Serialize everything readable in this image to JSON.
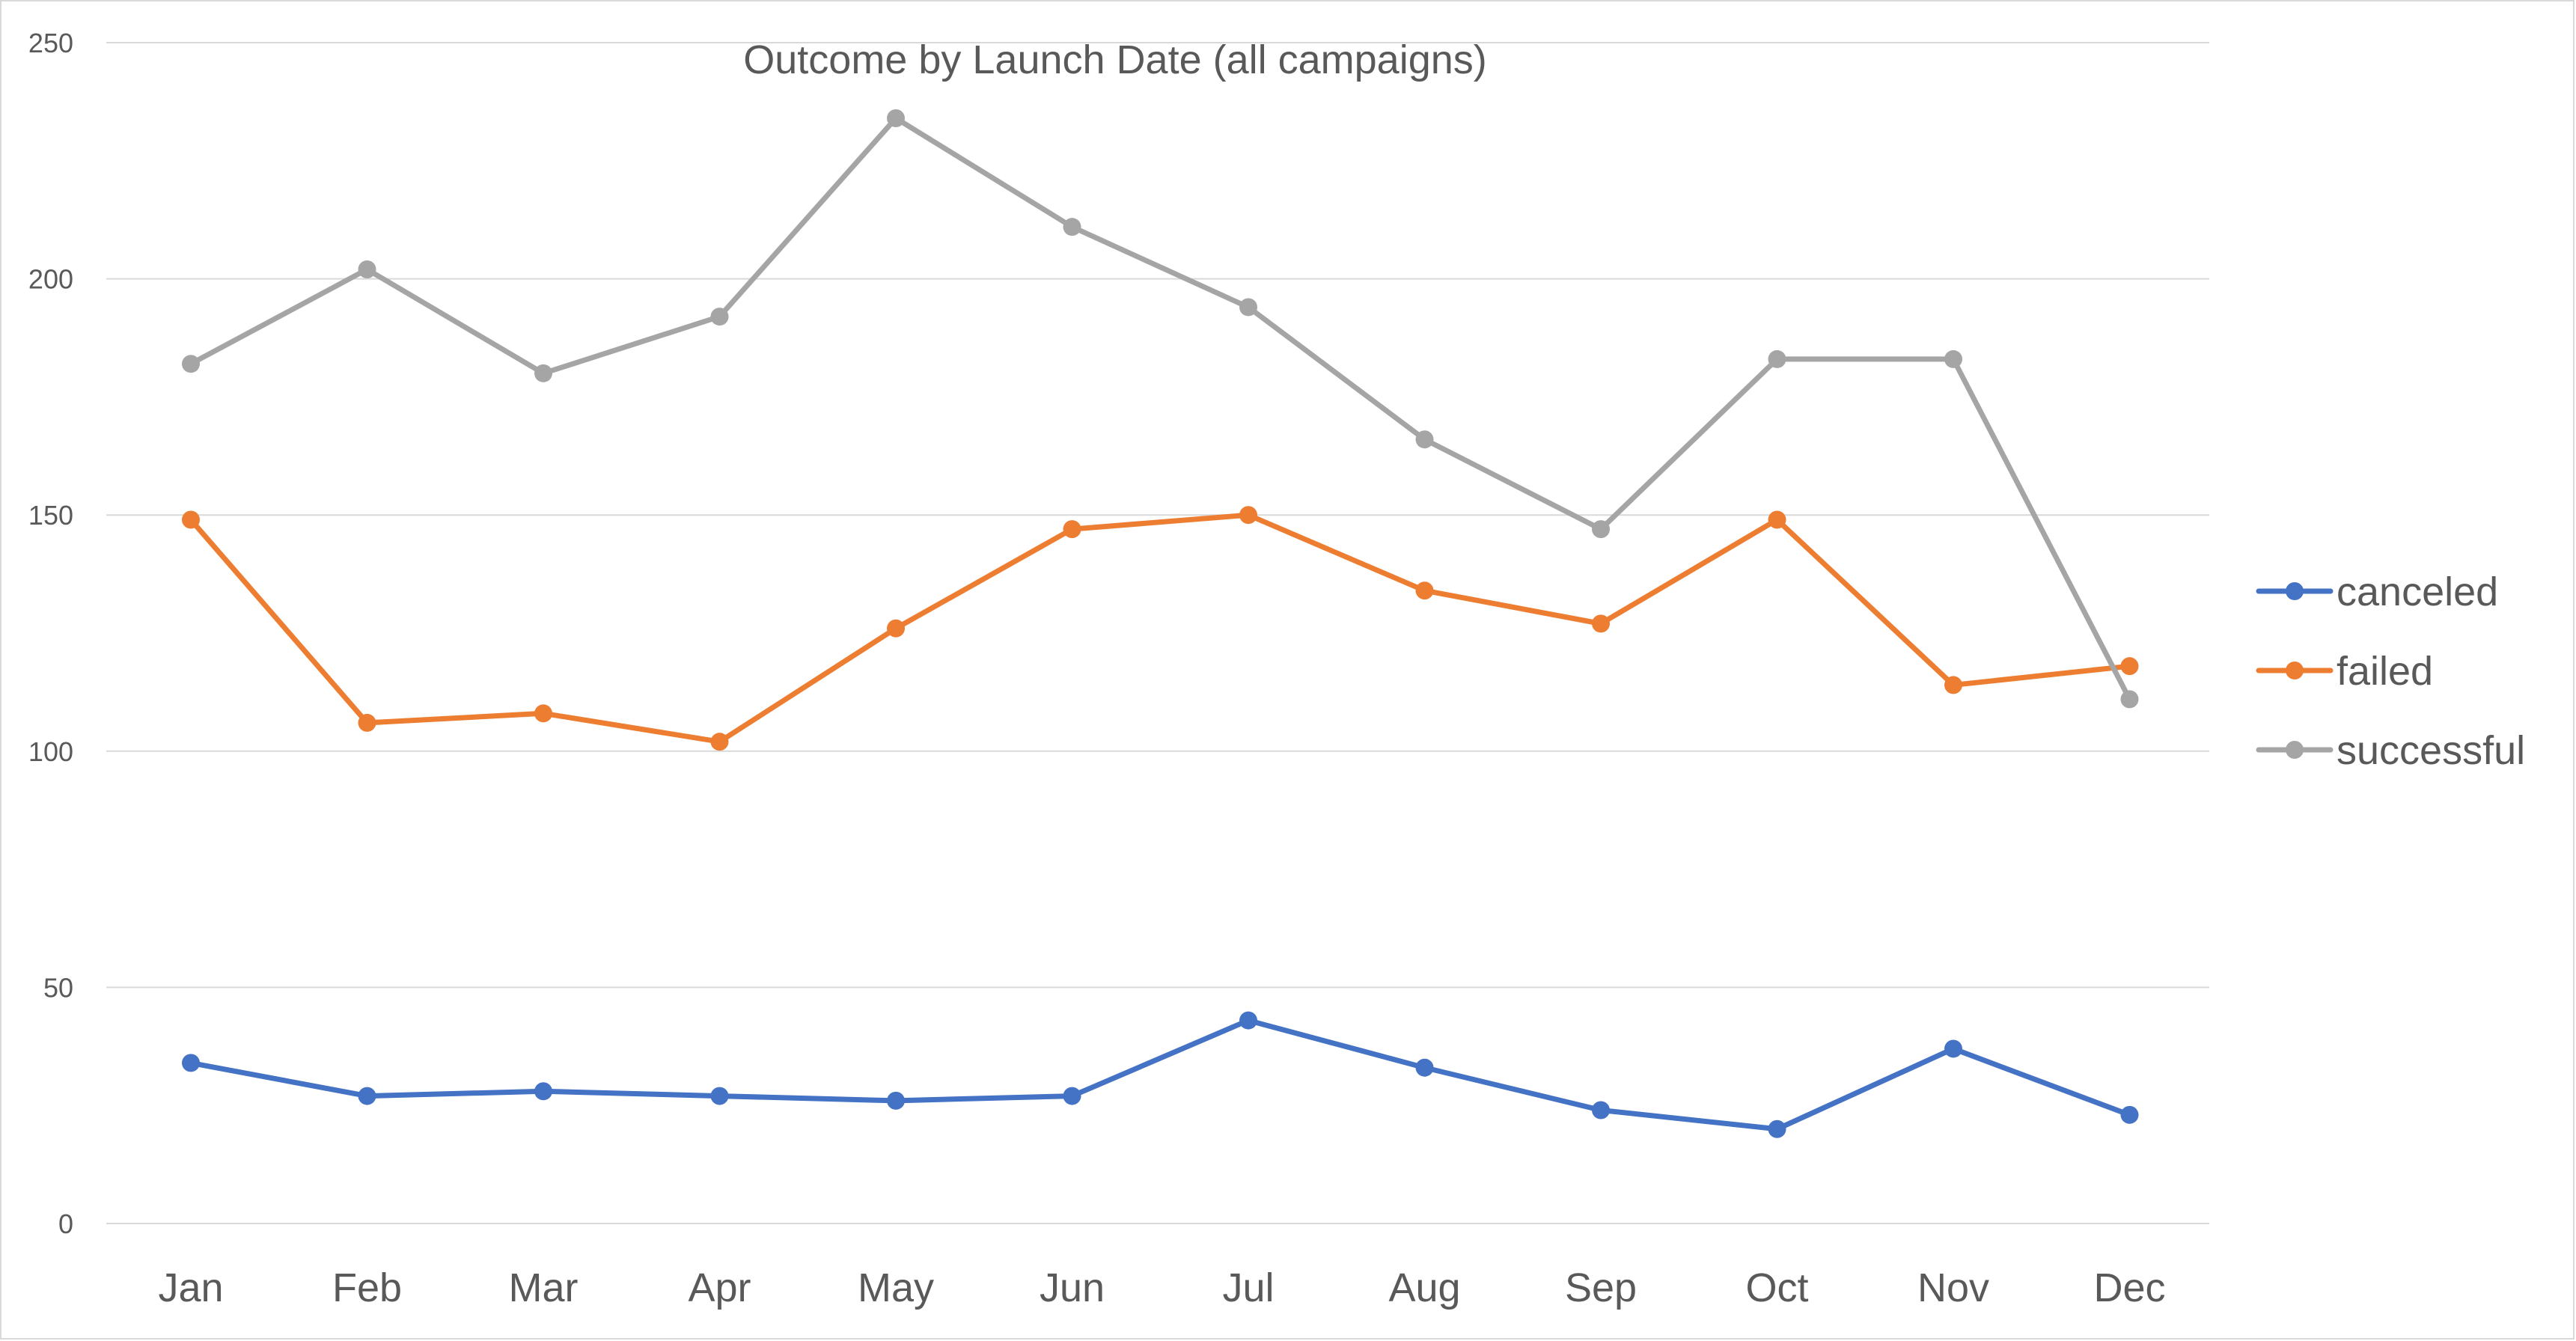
{
  "chart_data": {
    "type": "line",
    "title": "Outcome by Launch Date (all campaigns)",
    "xlabel": "",
    "ylabel": "",
    "categories": [
      "Jan",
      "Feb",
      "Mar",
      "Apr",
      "May",
      "Jun",
      "Jul",
      "Aug",
      "Sep",
      "Oct",
      "Nov",
      "Dec"
    ],
    "ylim": [
      0,
      250
    ],
    "yticks": [
      0,
      50,
      100,
      150,
      200,
      250
    ],
    "grid": true,
    "legend_position": "right",
    "series": [
      {
        "name": "canceled",
        "color": "#4472c4",
        "values": [
          34,
          27,
          28,
          27,
          26,
          27,
          43,
          33,
          24,
          20,
          37,
          23
        ]
      },
      {
        "name": "failed",
        "color": "#ed7d31",
        "values": [
          149,
          106,
          108,
          102,
          126,
          147,
          150,
          134,
          127,
          149,
          114,
          118
        ]
      },
      {
        "name": "successful",
        "color": "#a5a5a5",
        "values": [
          182,
          202,
          180,
          192,
          234,
          211,
          194,
          166,
          147,
          183,
          183,
          111
        ]
      }
    ]
  }
}
